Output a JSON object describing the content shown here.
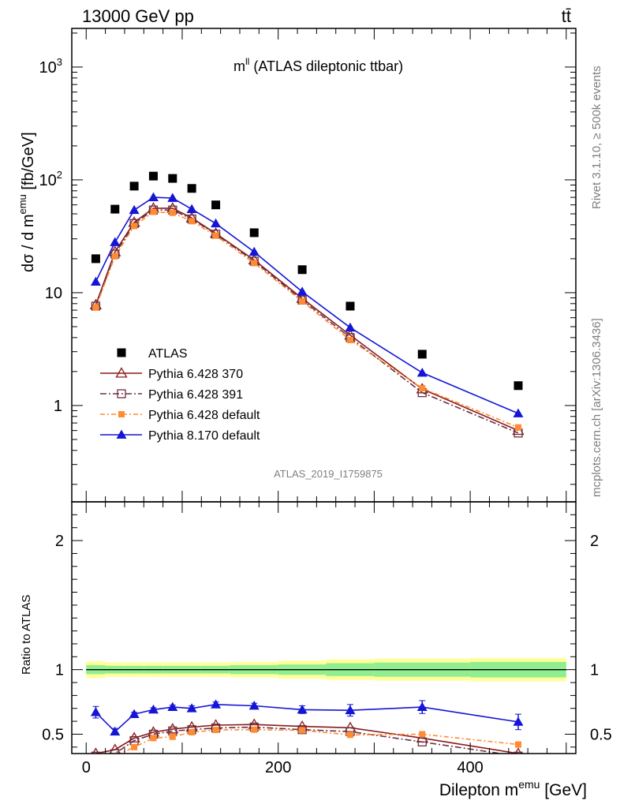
{
  "header": {
    "left": "13000 GeV pp",
    "right": "tt̄"
  },
  "plot_title": {
    "main": "m",
    "sup": "ll",
    "rest": " (ATLAS dileptonic ttbar)"
  },
  "side_labels": {
    "rivet": "Rivet 3.1.10, ≥ 500k events",
    "mcplots": "mcplots.cern.ch [arXiv:1306.3436]"
  },
  "analysis_id": "ATLAS_2019_I1759875",
  "colors": {
    "data": "#000000",
    "py370": "#8b1a1a",
    "py391": "#6b3040",
    "pydef": "#ff8c33",
    "py8": "#1515d6",
    "band_inner": "#90ee90",
    "band_outer": "#ffff99"
  },
  "chart_data": [
    {
      "type": "line",
      "panel": "main",
      "ylabel": {
        "pre": "dσ / d m",
        "sup": "emu",
        "post": " [fb/GeV]"
      },
      "ylog": true,
      "ylim": [
        0.14,
        2200
      ],
      "xlim": [
        -15,
        510
      ],
      "yticks": [
        {
          "v": 1,
          "label": "1"
        },
        {
          "v": 10,
          "label": "10"
        },
        {
          "v": 100,
          "label": "10",
          "sup": "2"
        },
        {
          "v": 1000,
          "label": "10",
          "sup": "3"
        }
      ],
      "x": [
        10,
        30,
        50,
        70,
        90,
        110,
        135,
        175,
        225,
        275,
        350,
        450
      ],
      "data": {
        "name": "ATLAS",
        "values": [
          20,
          55,
          88,
          108,
          103,
          84,
          60,
          34,
          16,
          7.6,
          2.85,
          1.5
        ]
      },
      "series": [
        {
          "name": "Pythia 6.428 370",
          "key": "py370",
          "marker": "open-triangle",
          "dash": "",
          "values": [
            7.8,
            23,
            42,
            56,
            56,
            46,
            33.5,
            19.5,
            8.9,
            4.2,
            1.4,
            0.6
          ]
        },
        {
          "name": "Pythia 6.428 391",
          "key": "py391",
          "marker": "open-square",
          "dash": "8,3,2,3",
          "values": [
            7.6,
            22,
            41,
            54,
            54,
            45,
            33,
            19,
            8.6,
            4.0,
            1.3,
            0.57
          ]
        },
        {
          "name": "Pythia 6.428 default",
          "key": "pydef",
          "marker": "filled-square",
          "dash": "6,3,2,3",
          "values": [
            7.4,
            21,
            39,
            52,
            51,
            43,
            32,
            18.3,
            8.4,
            3.8,
            1.42,
            0.64
          ]
        },
        {
          "name": "Pythia 8.170 default",
          "key": "py8",
          "marker": "filled-triangle",
          "dash": "",
          "values": [
            12.5,
            28,
            54,
            70,
            69,
            55,
            41,
            23,
            10.2,
            4.9,
            1.95,
            0.85
          ]
        }
      ],
      "legend": "lower-left"
    },
    {
      "type": "line",
      "panel": "ratio",
      "ylabel": "Ratio to ATLAS",
      "xlabel": {
        "pre": "Dilepton m",
        "sup": "emu",
        "post": " [GeV]"
      },
      "ylim": [
        0.35,
        2.3
      ],
      "xlim": [
        -15,
        510
      ],
      "yticks": [
        0.5,
        1,
        2
      ],
      "xticks": [
        0,
        200,
        400
      ],
      "bins": [
        0,
        20,
        40,
        60,
        80,
        100,
        120,
        150,
        200,
        250,
        300,
        400,
        500
      ],
      "band_inner": [
        0.035,
        0.03,
        0.03,
        0.03,
        0.03,
        0.03,
        0.03,
        0.035,
        0.04,
        0.05,
        0.055,
        0.06
      ],
      "band_outer": [
        0.065,
        0.055,
        0.055,
        0.055,
        0.055,
        0.055,
        0.055,
        0.06,
        0.07,
        0.08,
        0.085,
        0.09
      ],
      "x": [
        10,
        30,
        50,
        70,
        90,
        110,
        135,
        175,
        225,
        275,
        350,
        450
      ],
      "series": [
        {
          "key": "py370",
          "values": [
            0.35,
            0.38,
            0.47,
            0.515,
            0.54,
            0.555,
            0.57,
            0.575,
            0.56,
            0.55,
            0.47,
            0.35
          ]
        },
        {
          "key": "py391",
          "values": [
            0.33,
            0.35,
            0.45,
            0.5,
            0.525,
            0.535,
            0.548,
            0.555,
            0.535,
            0.52,
            0.44,
            0.33
          ]
        },
        {
          "key": "pydef",
          "values": [
            0.31,
            0.33,
            0.4,
            0.47,
            0.48,
            0.515,
            0.533,
            0.535,
            0.53,
            0.495,
            0.5,
            0.42
          ]
        },
        {
          "key": "py8",
          "values": [
            0.67,
            0.52,
            0.655,
            0.69,
            0.71,
            0.7,
            0.73,
            0.72,
            0.69,
            0.685,
            0.71,
            0.595
          ],
          "err": [
            0.045,
            0.025,
            0.015,
            0.015,
            0.015,
            0.02,
            0.02,
            0.02,
            0.03,
            0.045,
            0.05,
            0.06
          ]
        }
      ]
    }
  ]
}
